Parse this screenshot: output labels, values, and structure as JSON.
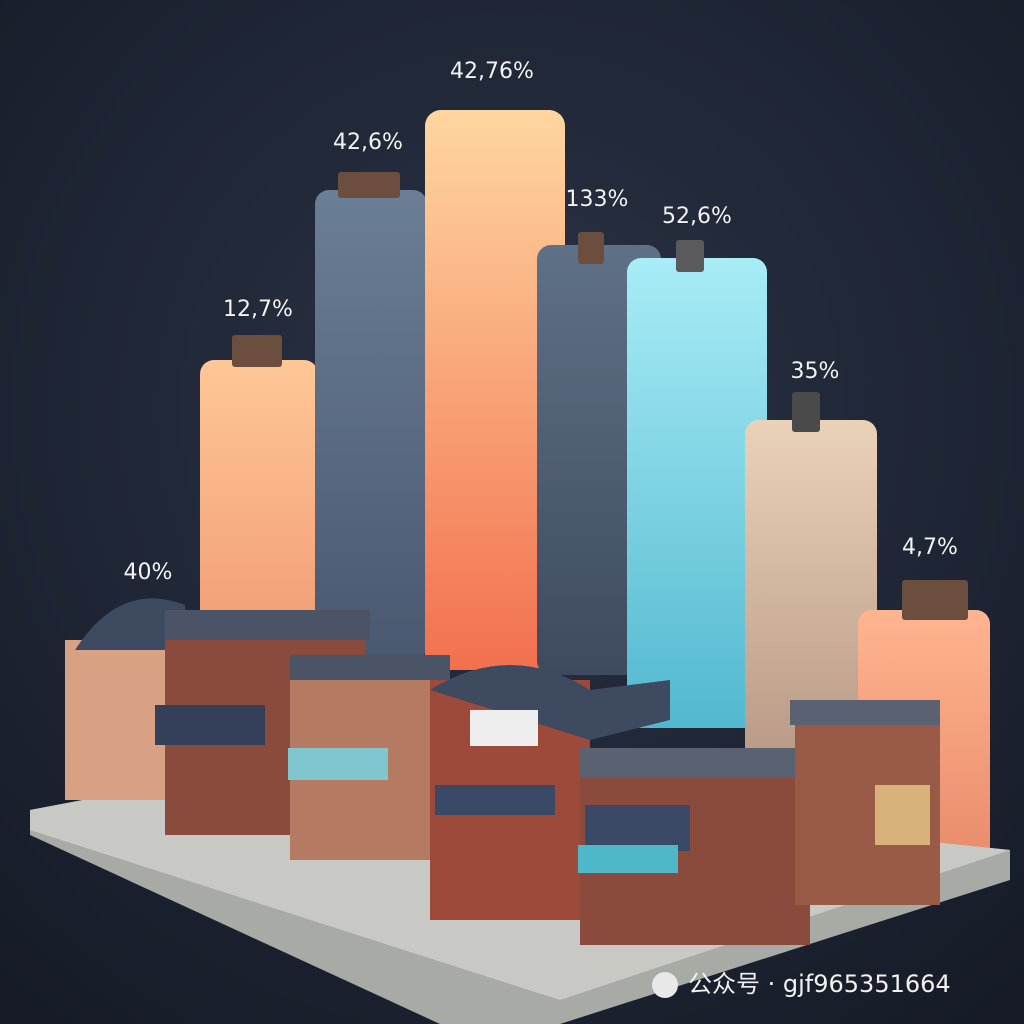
{
  "labels": [
    "40%",
    "12,7%",
    "42,6%",
    "42,76%",
    "133%",
    "52,6%",
    "35%",
    "4,7%"
  ],
  "watermark": "公众号 · gjf965351664"
}
